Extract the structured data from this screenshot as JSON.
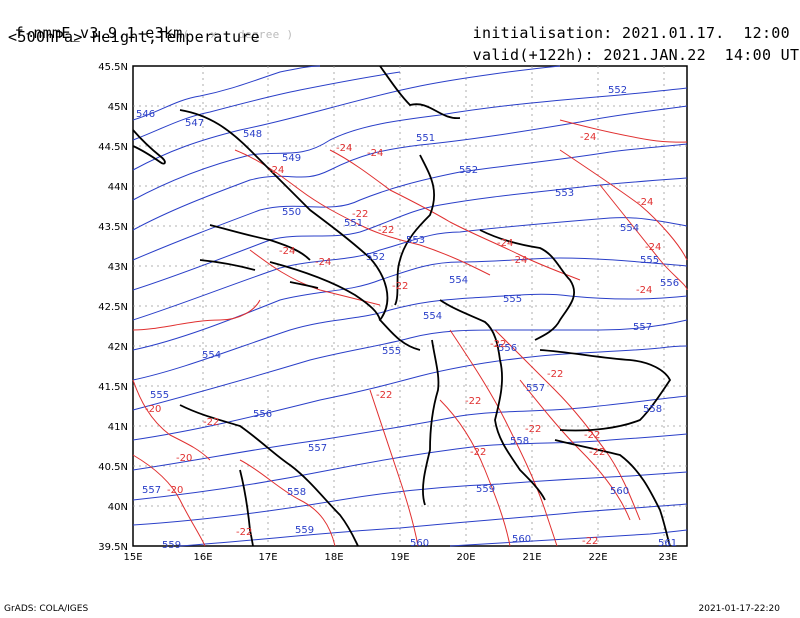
{
  "header": {
    "model": "f-nmmE_v3.9.1-e3km",
    "model_sub": "( . x . degree )",
    "field": "<500hPa> Height,Temperature",
    "init_label": "initialisation:",
    "init_value": "2021.01.17.  12:00 UTC",
    "valid_label": "valid(+122h):",
    "valid_value": "2021.JAN.22  14:00 UTC"
  },
  "footer": {
    "credit": "GrADS: COLA/IGES",
    "timestamp": "2021-01-17-22:20"
  },
  "map": {
    "lon_ticks": [
      "15E",
      "16E",
      "17E",
      "18E",
      "19E",
      "20E",
      "21E",
      "22E",
      "23E"
    ],
    "lat_ticks": [
      "45.5N",
      "45N",
      "44.5N",
      "44N",
      "43.5N",
      "43N",
      "42.5N",
      "42N",
      "41.5N",
      "41N",
      "40.5N",
      "40N",
      "39.5N"
    ],
    "colors": {
      "height": "#2a3fc8",
      "temperature": "#e03030",
      "coast": "#000000",
      "grid": "#999999"
    },
    "height_labels": [
      "546",
      "547",
      "548",
      "549",
      "550",
      "551",
      "552",
      "553",
      "554",
      "555",
      "556",
      "557",
      "558",
      "559",
      "560",
      "561"
    ],
    "temperature_labels": [
      "-20",
      "-22",
      "-24"
    ]
  }
}
